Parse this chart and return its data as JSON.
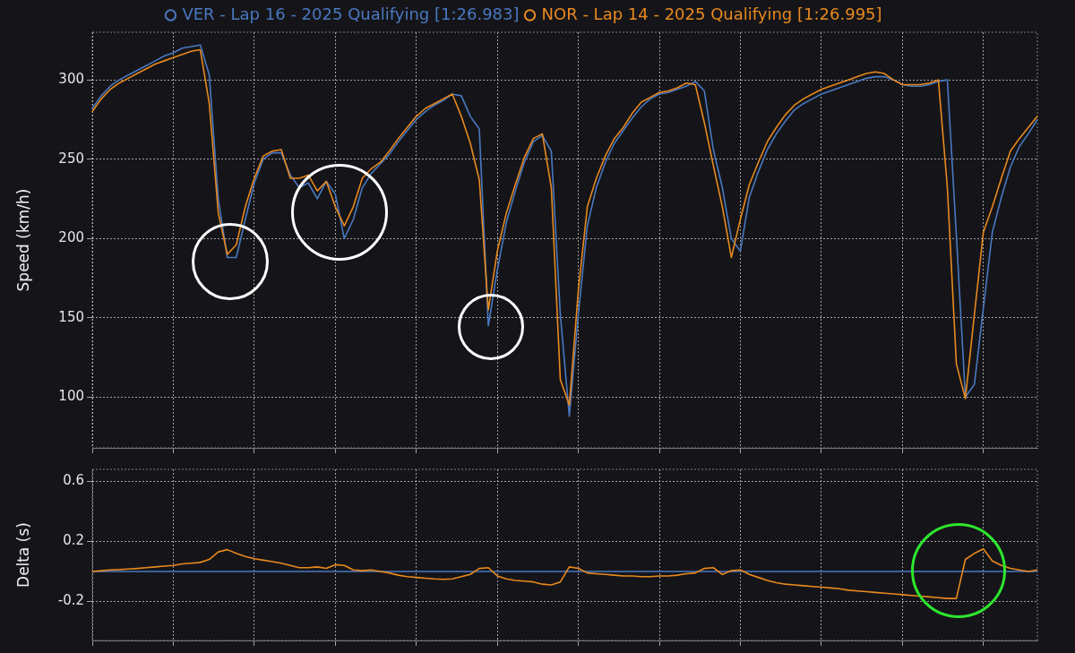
{
  "chart_data": [
    {
      "type": "line",
      "ylabel": "Speed (km/h)",
      "legend": "top",
      "grid": true,
      "tick_labels": "y",
      "ylim": [
        68,
        330
      ],
      "yticks": [
        100,
        150,
        200,
        250,
        300
      ],
      "categories": [
        null,
        null,
        null,
        null,
        null,
        null,
        null,
        null,
        null,
        null,
        null,
        null,
        null,
        null,
        null,
        null,
        null,
        null,
        null,
        null,
        null,
        null,
        null,
        null,
        null,
        null,
        null,
        null,
        null,
        null,
        null,
        null,
        null,
        null,
        null,
        null,
        null,
        null,
        null,
        null,
        null,
        null,
        null,
        null,
        null,
        null,
        null,
        null,
        null,
        null,
        null,
        null,
        null,
        null,
        null,
        null,
        null,
        null,
        null,
        null,
        null,
        null,
        null,
        null,
        null,
        null,
        null,
        null,
        null,
        null,
        null,
        null,
        null,
        null,
        null,
        null,
        null,
        null,
        null,
        null,
        null,
        null,
        null,
        null,
        null,
        null,
        null,
        null,
        null,
        null,
        null,
        null,
        null,
        null,
        null,
        null,
        null,
        null,
        null,
        null,
        null,
        null,
        null,
        null,
        null,
        null
      ],
      "series": [
        {
          "name": "VER - Lap 16 - 2025 Qualifying [1:26.983]",
          "color": "#4a78c0",
          "values": [
            282,
            290,
            296,
            300,
            303,
            306,
            309,
            312,
            315,
            317,
            320,
            321,
            322,
            303,
            225,
            188,
            188,
            212,
            235,
            250,
            254,
            254,
            240,
            232,
            235,
            225,
            236,
            228,
            200,
            212,
            232,
            241,
            247,
            253,
            261,
            268,
            275,
            280,
            284,
            287,
            291,
            290,
            277,
            269,
            145,
            180,
            210,
            230,
            248,
            261,
            265,
            255,
            152,
            88,
            152,
            208,
            232,
            248,
            260,
            268,
            276,
            283,
            288,
            291,
            292,
            294,
            296,
            299,
            293,
            256,
            232,
            200,
            192,
            226,
            242,
            256,
            266,
            274,
            281,
            285,
            288,
            291,
            293,
            295,
            297,
            299,
            301,
            302,
            302,
            300,
            297,
            296,
            296,
            297,
            299,
            300,
            202,
            100,
            108,
            156,
            204,
            226,
            245,
            258,
            266,
            275
          ]
        },
        {
          "name": "NOR - Lap 14 - 2025 Qualifying [1:26.995]",
          "color": "#e8891f",
          "values": [
            280,
            288,
            294,
            298,
            301,
            304,
            307,
            310,
            312,
            314,
            316,
            318,
            319,
            285,
            216,
            190,
            196,
            220,
            238,
            252,
            255,
            256,
            238,
            238,
            240,
            230,
            236,
            220,
            208,
            220,
            238,
            244,
            248,
            255,
            263,
            270,
            277,
            282,
            285,
            288,
            291,
            277,
            260,
            237,
            155,
            192,
            216,
            234,
            251,
            263,
            266,
            232,
            111,
            95,
            167,
            220,
            238,
            252,
            263,
            270,
            279,
            286,
            289,
            292,
            293,
            295,
            298,
            297,
            273,
            246,
            220,
            188,
            212,
            234,
            248,
            261,
            270,
            278,
            284,
            288,
            291,
            294,
            296,
            298,
            300,
            302,
            304,
            305,
            304,
            300,
            297,
            297,
            297,
            298,
            300,
            232,
            121,
            99,
            152,
            204,
            220,
            238,
            255,
            263,
            270,
            277
          ]
        }
      ]
    },
    {
      "type": "line",
      "ylabel": "Delta (s)",
      "legend": false,
      "grid": true,
      "tick_labels": "y",
      "ylim": [
        -0.46,
        0.68
      ],
      "yticks": [
        -0.2,
        0.2,
        0.6
      ],
      "categories": [
        null,
        null,
        null,
        null,
        null,
        null,
        null,
        null,
        null,
        null,
        null,
        null,
        null,
        null,
        null,
        null,
        null,
        null,
        null,
        null,
        null,
        null,
        null,
        null,
        null,
        null,
        null,
        null,
        null,
        null,
        null,
        null,
        null,
        null,
        null,
        null,
        null,
        null,
        null,
        null,
        null,
        null,
        null,
        null,
        null,
        null,
        null,
        null,
        null,
        null,
        null,
        null,
        null,
        null,
        null,
        null,
        null,
        null,
        null,
        null,
        null,
        null,
        null,
        null,
        null,
        null,
        null,
        null,
        null,
        null,
        null,
        null,
        null,
        null,
        null,
        null,
        null,
        null,
        null,
        null,
        null,
        null,
        null,
        null,
        null,
        null,
        null,
        null,
        null,
        null,
        null,
        null,
        null,
        null,
        null,
        null,
        null,
        null,
        null,
        null,
        null,
        null,
        null,
        null,
        null,
        null
      ],
      "series": [
        {
          "color": "#4a78c0",
          "values": [
            0,
            0,
            0,
            0,
            0,
            0,
            0,
            0,
            0,
            0,
            0,
            0,
            0,
            0,
            0,
            0,
            0,
            0,
            0,
            0,
            0,
            0,
            0,
            0,
            0,
            0,
            0,
            0,
            0,
            0,
            0,
            0,
            0,
            0,
            0,
            0,
            0,
            0,
            0,
            0,
            0,
            0,
            0,
            0,
            0,
            0,
            0,
            0,
            0,
            0,
            0,
            0,
            0,
            0,
            0,
            0,
            0,
            0,
            0,
            0,
            0,
            0,
            0,
            0,
            0,
            0,
            0,
            0,
            0,
            0,
            0,
            0,
            0,
            0,
            0,
            0,
            0,
            0,
            0,
            0,
            0,
            0,
            0,
            0,
            0,
            0,
            0,
            0,
            0,
            0,
            0,
            0,
            0,
            0,
            0,
            0,
            0,
            0,
            0,
            0,
            0,
            0,
            0,
            0,
            0,
            0
          ]
        },
        {
          "color": "#e8891f",
          "values": [
            0,
            0.005,
            0.01,
            0.012,
            0.016,
            0.02,
            0.025,
            0.03,
            0.035,
            0.04,
            0.05,
            0.055,
            0.06,
            0.08,
            0.13,
            0.145,
            0.12,
            0.1,
            0.085,
            0.075,
            0.065,
            0.055,
            0.04,
            0.025,
            0.025,
            0.03,
            0.02,
            0.045,
            0.04,
            0.01,
            0.005,
            0.01,
            0,
            -0.01,
            -0.025,
            -0.035,
            -0.04,
            -0.045,
            -0.05,
            -0.053,
            -0.05,
            -0.035,
            -0.02,
            0.02,
            0.025,
            -0.03,
            -0.05,
            -0.06,
            -0.065,
            -0.07,
            -0.085,
            -0.09,
            -0.07,
            0.03,
            0.02,
            -0.01,
            -0.015,
            -0.02,
            -0.025,
            -0.03,
            -0.03,
            -0.035,
            -0.035,
            -0.03,
            -0.03,
            -0.025,
            -0.015,
            -0.01,
            0.02,
            0.025,
            -0.02,
            0.005,
            0.01,
            -0.02,
            -0.04,
            -0.06,
            -0.075,
            -0.085,
            -0.09,
            -0.095,
            -0.1,
            -0.105,
            -0.11,
            -0.115,
            -0.125,
            -0.13,
            -0.135,
            -0.14,
            -0.145,
            -0.15,
            -0.155,
            -0.16,
            -0.165,
            -0.17,
            -0.175,
            -0.18,
            -0.18,
            0.08,
            0.12,
            0.15,
            0.07,
            0.04,
            0.02,
            0.01,
            0,
            0.01
          ]
        }
      ]
    }
  ]
}
